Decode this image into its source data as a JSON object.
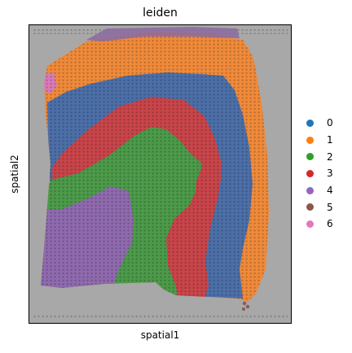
{
  "title": "leiden",
  "xlabel": "spatial1",
  "ylabel": "spatial2",
  "legend": [
    {
      "label": "0",
      "color": "#1f77b4"
    },
    {
      "label": "1",
      "color": "#ff7f0e"
    },
    {
      "label": "2",
      "color": "#2ca02c"
    },
    {
      "label": "3",
      "color": "#d62728"
    },
    {
      "label": "4",
      "color": "#9467bd"
    },
    {
      "label": "5",
      "color": "#8c564b"
    },
    {
      "label": "6",
      "color": "#e377c2"
    }
  ],
  "background_color": "#a8a8a8"
}
